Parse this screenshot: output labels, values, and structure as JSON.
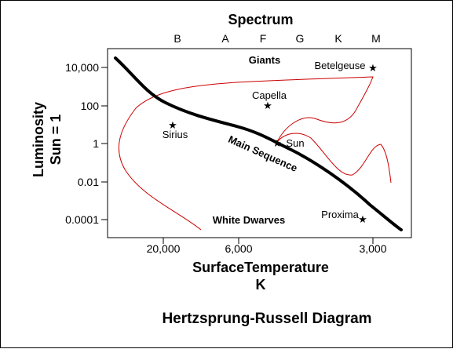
{
  "figure": {
    "caption": "Hertzsprung-Russell Diagram",
    "colors": {
      "background": "#ffffff",
      "ink": "#000000",
      "evolution_track": "#cc0000"
    }
  },
  "axes": {
    "top": {
      "title": "Spectrum",
      "ticks": [
        "B",
        "A",
        "F",
        "G",
        "K",
        "M"
      ]
    },
    "bottom": {
      "title_line1": "SurfaceTemperature",
      "title_line2": "K",
      "ticks": [
        "20,000",
        "6,000",
        "3,000"
      ]
    },
    "left": {
      "title_line1": "Luminosity",
      "title_line2": "Sun = 1",
      "ticks": [
        "10,000",
        "100",
        "1",
        "0.01",
        "0.0001"
      ]
    }
  },
  "regions": {
    "giants": "Giants",
    "main_sequence": "Main Sequence",
    "white_dwarves": "White Dwarves"
  },
  "stars": [
    {
      "name": "Betelgeuse"
    },
    {
      "name": "Capella"
    },
    {
      "name": "Sirius"
    },
    {
      "name": "Sun"
    },
    {
      "name": "Proxima"
    }
  ]
}
